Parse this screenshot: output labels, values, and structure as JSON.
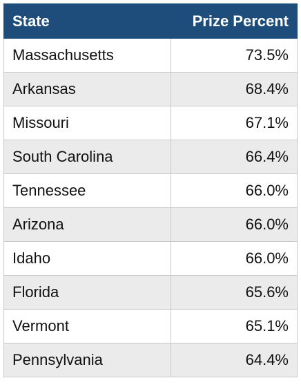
{
  "table": {
    "header": [
      "State",
      "Prize Percent"
    ],
    "rows": [
      [
        "Massachusetts",
        "73.5%"
      ],
      [
        "Arkansas",
        "68.4%"
      ],
      [
        "Missouri",
        "67.1%"
      ],
      [
        "South Carolina",
        "66.4%"
      ],
      [
        "Tennessee",
        "66.0%"
      ],
      [
        "Arizona",
        "66.0%"
      ],
      [
        "Idaho",
        "66.0%"
      ],
      [
        "Florida",
        "65.6%"
      ],
      [
        "Vermont",
        "65.1%"
      ],
      [
        "Pennsylvania",
        "64.4%"
      ]
    ]
  }
}
